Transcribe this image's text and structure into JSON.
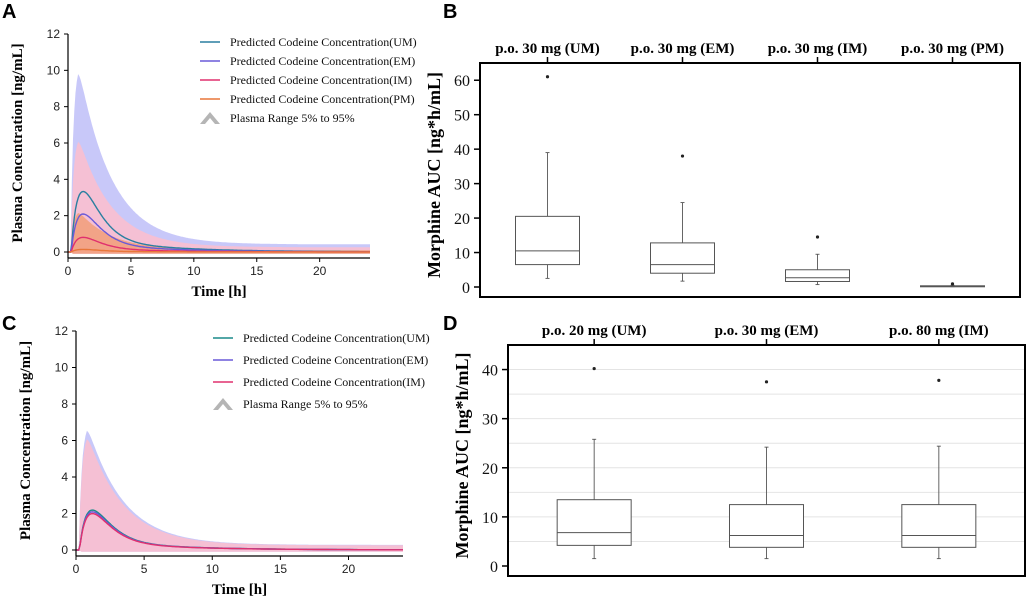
{
  "chart_data": [
    {
      "panel": "A",
      "type": "line",
      "xlabel": "Time [h]",
      "ylabel": "Plasma Concentration [ng/mL]",
      "xlim": [
        0,
        24
      ],
      "ylim": [
        0,
        12
      ],
      "xticks": [
        0,
        5,
        10,
        15,
        20
      ],
      "yticks": [
        0,
        2,
        4,
        6,
        8,
        10,
        12
      ],
      "series": [
        {
          "name": "Predicted Codeine Concentration(UM)",
          "color": "#2a7fa0",
          "cmax": 3.5,
          "tmax": 1.2
        },
        {
          "name": "Predicted Codeine Concentration(EM)",
          "color": "#6a5ad8",
          "cmax": 2.2,
          "tmax": 1.2
        },
        {
          "name": "Predicted Codeine Concentration(IM)",
          "color": "#e0306e",
          "cmax": 0.85,
          "tmax": 1.2
        },
        {
          "name": "Predicted Codeine Concentration(PM)",
          "color": "#e8763a",
          "cmax": 0.15,
          "tmax": 1.2
        }
      ],
      "bands": [
        {
          "color": "#c2c2f8",
          "upper_peak": 10.5,
          "lower": -0.1
        },
        {
          "color": "#f9bfcf",
          "upper_peak": 6.5,
          "lower": -0.1
        },
        {
          "color": "#f2a07e",
          "upper_peak": 2.3,
          "lower": -0.1
        }
      ],
      "band_legend": "Plasma Range 5% to 95%"
    },
    {
      "panel": "B",
      "type": "box",
      "ylabel": "Morphine AUC [ng*h/mL]",
      "ylim": [
        0,
        65
      ],
      "yticks": [
        0,
        10,
        20,
        30,
        40,
        50,
        60
      ],
      "categories": [
        "p.o. 30 mg (UM)",
        "p.o. 30 mg (EM)",
        "p.o. 30 mg (IM)",
        "p.o. 30 mg (PM)"
      ],
      "boxes": [
        {
          "whisker_low": 2.5,
          "q1": 6.5,
          "median": 10.5,
          "q3": 20.5,
          "whisker_high": 39,
          "outliers": [
            61
          ]
        },
        {
          "whisker_low": 1.7,
          "q1": 4,
          "median": 6.5,
          "q3": 12.8,
          "whisker_high": 24.5,
          "outliers": [
            38
          ]
        },
        {
          "whisker_low": 0.7,
          "q1": 1.6,
          "median": 2.7,
          "q3": 5,
          "whisker_high": 9.5,
          "outliers": [
            14.5
          ]
        },
        {
          "whisker_low": 0.1,
          "q1": 0.2,
          "median": 0.3,
          "q3": 0.35,
          "whisker_high": 0.5,
          "outliers": [
            0.9
          ]
        }
      ],
      "grid": false
    },
    {
      "panel": "C",
      "type": "line",
      "xlabel": "Time [h]",
      "ylabel": "Plasma Concentration [ng/mL]",
      "xlim": [
        0,
        24
      ],
      "ylim": [
        0,
        12
      ],
      "xticks": [
        0,
        5,
        10,
        15,
        20
      ],
      "yticks": [
        0,
        2,
        4,
        6,
        8,
        10,
        12
      ],
      "series": [
        {
          "name": "Predicted Codeine Concentration(UM)",
          "color": "#1a8a8a",
          "cmax": 2.3,
          "tmax": 1.2
        },
        {
          "name": "Predicted Codeine Concentration(EM)",
          "color": "#6a5ad8",
          "cmax": 2.2,
          "tmax": 1.2
        },
        {
          "name": "Predicted Codeine Concentration(IM)",
          "color": "#e0306e",
          "cmax": 2.1,
          "tmax": 1.2
        }
      ],
      "bands": [
        {
          "color": "#c2c2f8",
          "upper_peak": 7.0,
          "lower": -0.1
        },
        {
          "color": "#f9bfcf",
          "upper_peak": 6.5,
          "lower": -0.1
        }
      ],
      "band_legend": "Plasma Range 5% to 95%"
    },
    {
      "panel": "D",
      "type": "box",
      "ylabel": "Morphine AUC [ng*h/mL]",
      "ylim": [
        0,
        45
      ],
      "yticks": [
        0,
        10,
        20,
        30,
        40
      ],
      "categories": [
        "p.o. 20 mg (UM)",
        "p.o. 30 mg (EM)",
        "p.o. 80 mg (IM)"
      ],
      "boxes": [
        {
          "whisker_low": 1.5,
          "q1": 4.2,
          "median": 6.8,
          "q3": 13.5,
          "whisker_high": 25.8,
          "outliers": [
            40.2
          ]
        },
        {
          "whisker_low": 1.5,
          "q1": 3.8,
          "median": 6.2,
          "q3": 12.5,
          "whisker_high": 24.2,
          "outliers": [
            37.5
          ]
        },
        {
          "whisker_low": 1.5,
          "q1": 3.8,
          "median": 6.2,
          "q3": 12.5,
          "whisker_high": 24.4,
          "outliers": [
            37.8
          ]
        }
      ],
      "grid": true
    }
  ]
}
